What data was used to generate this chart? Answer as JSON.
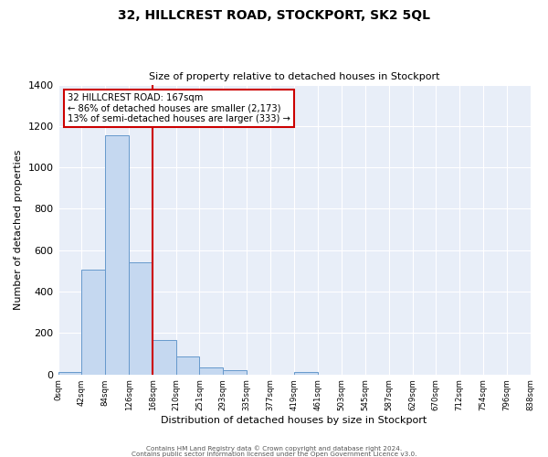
{
  "title": "32, HILLCREST ROAD, STOCKPORT, SK2 5QL",
  "subtitle": "Size of property relative to detached houses in Stockport",
  "xlabel": "Distribution of detached houses by size in Stockport",
  "ylabel": "Number of detached properties",
  "footer_line1": "Contains HM Land Registry data © Crown copyright and database right 2024.",
  "footer_line2": "Contains public sector information licensed under the Open Government Licence v3.0.",
  "bin_edges": [
    0,
    42,
    84,
    126,
    168,
    210,
    251,
    293,
    335,
    377,
    419,
    461,
    503,
    545,
    587,
    629,
    670,
    712,
    754,
    796,
    838
  ],
  "bin_labels": [
    "0sqm",
    "42sqm",
    "84sqm",
    "126sqm",
    "168sqm",
    "210sqm",
    "251sqm",
    "293sqm",
    "335sqm",
    "377sqm",
    "419sqm",
    "461sqm",
    "503sqm",
    "545sqm",
    "587sqm",
    "629sqm",
    "670sqm",
    "712sqm",
    "754sqm",
    "796sqm",
    "838sqm"
  ],
  "bar_heights": [
    10,
    505,
    1155,
    540,
    165,
    88,
    35,
    22,
    0,
    0,
    10,
    0,
    0,
    0,
    0,
    0,
    0,
    0,
    0,
    0
  ],
  "bar_color": "#c5d8f0",
  "bar_edge_color": "#6699cc",
  "property_line_x": 167,
  "property_line_color": "#cc0000",
  "annotation_text_line1": "32 HILLCREST ROAD: 167sqm",
  "annotation_text_line2": "← 86% of detached houses are smaller (2,173)",
  "annotation_text_line3": "13% of semi-detached houses are larger (333) →",
  "annotation_box_edge_color": "#cc0000",
  "ylim": [
    0,
    1400
  ],
  "yticks": [
    0,
    200,
    400,
    600,
    800,
    1000,
    1200,
    1400
  ],
  "background_color": "#ffffff",
  "plot_background_color": "#e8eef8",
  "grid_color": "#ffffff"
}
